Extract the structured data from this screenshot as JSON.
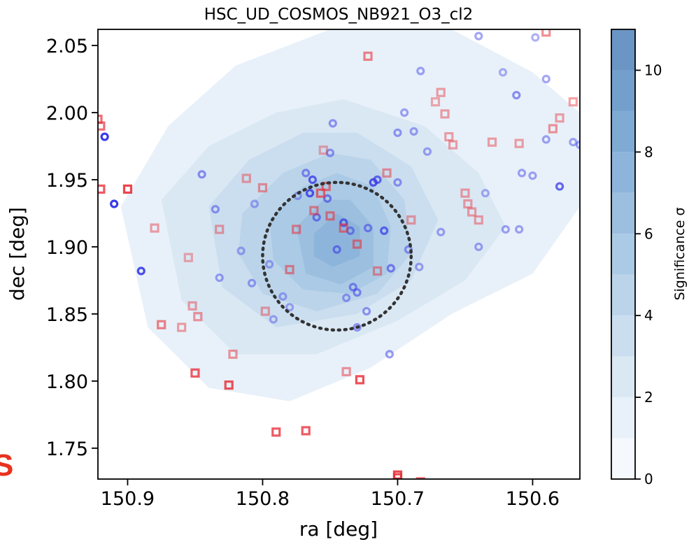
{
  "chart_data": {
    "type": "scatter",
    "title": "HSC_UD_COSMOS_NB921_O3_cl2",
    "xlabel": "ra [deg]",
    "ylabel": "dec [deg]",
    "xlim": [
      150.922,
      150.565
    ],
    "ylim": [
      1.727,
      2.062
    ],
    "x_ticks": [
      150.9,
      150.8,
      150.7,
      150.6
    ],
    "x_tick_labels": [
      "150.9",
      "150.8",
      "150.7",
      "150.6"
    ],
    "y_ticks": [
      1.75,
      1.8,
      1.85,
      1.9,
      1.95,
      2.0,
      2.05
    ],
    "y_tick_labels": [
      "1.75",
      "1.80",
      "1.85",
      "1.90",
      "1.95",
      "2.00",
      "2.05"
    ],
    "grid": false,
    "x_inverted": true,
    "background_contours": {
      "type": "filled-contour",
      "colorbar_label": "Significance σ",
      "colorbar_range": [
        0,
        11
      ],
      "colorbar_ticks": [
        0,
        2,
        4,
        6,
        8,
        10
      ],
      "colorbar_tick_labels": [
        "0",
        "2",
        "4",
        "6",
        "8",
        "10"
      ],
      "level_colors": [
        "#f5f9fd",
        "#e8f1f9",
        "#dae8f4",
        "#cbdeef",
        "#bbd4ea",
        "#abcae5",
        "#9cbfe0",
        "#8db5db",
        "#7faad4",
        "#739fcc",
        "#6a95c4"
      ],
      "regions": [
        {
          "level": 1,
          "points": [
            [
              150.905,
              1.93
            ],
            [
              150.87,
              1.99
            ],
            [
              150.82,
              2.035
            ],
            [
              150.75,
              2.062
            ],
            [
              150.66,
              2.062
            ],
            [
              150.6,
              2.03
            ],
            [
              150.565,
              2.0
            ],
            [
              150.565,
              1.93
            ],
            [
              150.6,
              1.88
            ],
            [
              150.66,
              1.85
            ],
            [
              150.72,
              1.81
            ],
            [
              150.78,
              1.785
            ],
            [
              150.84,
              1.795
            ],
            [
              150.885,
              1.84
            ]
          ]
        },
        {
          "level": 2,
          "points": [
            [
              150.875,
              1.935
            ],
            [
              150.84,
              1.975
            ],
            [
              150.79,
              2.0
            ],
            [
              150.74,
              2.01
            ],
            [
              150.68,
              1.99
            ],
            [
              150.64,
              1.955
            ],
            [
              150.62,
              1.915
            ],
            [
              150.65,
              1.875
            ],
            [
              150.7,
              1.845
            ],
            [
              150.76,
              1.82
            ],
            [
              150.82,
              1.82
            ],
            [
              150.86,
              1.86
            ]
          ]
        },
        {
          "level": 3,
          "points": [
            [
              150.84,
              1.93
            ],
            [
              150.81,
              1.965
            ],
            [
              150.77,
              1.985
            ],
            [
              150.73,
              1.985
            ],
            [
              150.69,
              1.96
            ],
            [
              150.67,
              1.92
            ],
            [
              150.69,
              1.875
            ],
            [
              150.73,
              1.85
            ],
            [
              150.79,
              1.84
            ],
            [
              150.83,
              1.87
            ]
          ]
        },
        {
          "level": 4,
          "points": [
            [
              150.815,
              1.925
            ],
            [
              150.785,
              1.955
            ],
            [
              150.75,
              1.97
            ],
            [
              150.72,
              1.965
            ],
            [
              150.695,
              1.935
            ],
            [
              150.69,
              1.895
            ],
            [
              150.715,
              1.865
            ],
            [
              150.76,
              1.852
            ],
            [
              150.8,
              1.865
            ],
            [
              150.818,
              1.895
            ]
          ]
        },
        {
          "level": 5,
          "points": [
            [
              150.795,
              1.92
            ],
            [
              150.77,
              1.945
            ],
            [
              150.745,
              1.955
            ],
            [
              150.718,
              1.945
            ],
            [
              150.705,
              1.915
            ],
            [
              150.708,
              1.88
            ],
            [
              150.735,
              1.865
            ],
            [
              150.77,
              1.868
            ],
            [
              150.792,
              1.89
            ]
          ]
        },
        {
          "level": 6,
          "points": [
            [
              150.775,
              1.915
            ],
            [
              150.755,
              1.935
            ],
            [
              150.735,
              1.935
            ],
            [
              150.718,
              1.915
            ],
            [
              150.718,
              1.885
            ],
            [
              150.742,
              1.872
            ],
            [
              150.768,
              1.88
            ]
          ]
        },
        {
          "level": 7,
          "points": [
            [
              150.762,
              1.91
            ],
            [
              150.745,
              1.925
            ],
            [
              150.728,
              1.915
            ],
            [
              150.728,
              1.893
            ],
            [
              150.748,
              1.885
            ],
            [
              150.762,
              1.893
            ]
          ]
        }
      ]
    },
    "circle": {
      "center": [
        150.745,
        1.893
      ],
      "radius_ra": 0.055,
      "radius_dec": 0.055,
      "style": "dotted",
      "color": "#333333"
    },
    "series": [
      {
        "marker": "circle",
        "color": "#3a3ae8",
        "points": [
          [
            150.917,
            1.982,
            1.0
          ],
          [
            150.91,
            1.932,
            1.0
          ],
          [
            150.89,
            1.882,
            0.9
          ],
          [
            150.845,
            1.954,
            0.55
          ],
          [
            150.835,
            1.928,
            0.5
          ],
          [
            150.832,
            1.877,
            0.45
          ],
          [
            150.816,
            1.897,
            0.4
          ],
          [
            150.808,
            1.873,
            0.45
          ],
          [
            150.806,
            1.932,
            0.4
          ],
          [
            150.795,
            1.887,
            0.4
          ],
          [
            150.792,
            1.846,
            0.4
          ],
          [
            150.785,
            1.863,
            0.4
          ],
          [
            150.78,
            1.855,
            0.4
          ],
          [
            150.774,
            1.938,
            0.4
          ],
          [
            150.768,
            1.955,
            0.55
          ],
          [
            150.765,
            1.94,
            0.85
          ],
          [
            150.763,
            1.95,
            0.8
          ],
          [
            150.76,
            1.922,
            0.6
          ],
          [
            150.752,
            1.936,
            0.6
          ],
          [
            150.75,
            1.97,
            0.5
          ],
          [
            150.748,
            1.992,
            0.5
          ],
          [
            150.745,
            1.898,
            0.6
          ],
          [
            150.74,
            1.918,
            0.75
          ],
          [
            150.738,
            1.862,
            0.45
          ],
          [
            150.735,
            1.912,
            0.55
          ],
          [
            150.733,
            1.87,
            0.55
          ],
          [
            150.73,
            1.866,
            0.55
          ],
          [
            150.73,
            1.84,
            0.5
          ],
          [
            150.723,
            1.852,
            0.5
          ],
          [
            150.722,
            1.914,
            0.55
          ],
          [
            150.718,
            1.948,
            0.85
          ],
          [
            150.715,
            1.95,
            0.75
          ],
          [
            150.71,
            1.912,
            0.75
          ],
          [
            150.705,
            1.884,
            0.6
          ],
          [
            150.706,
            1.82,
            0.5
          ],
          [
            150.7,
            1.948,
            0.5
          ],
          [
            150.7,
            1.985,
            0.5
          ],
          [
            150.695,
            2.0,
            0.45
          ],
          [
            150.692,
            1.898,
            0.5
          ],
          [
            150.688,
            1.986,
            0.45
          ],
          [
            150.684,
            1.885,
            0.45
          ],
          [
            150.683,
            2.031,
            0.45
          ],
          [
            150.678,
            1.971,
            0.45
          ],
          [
            150.668,
            1.911,
            0.45
          ],
          [
            150.64,
            1.9,
            0.45
          ],
          [
            150.64,
            2.057,
            0.45
          ],
          [
            150.635,
            1.94,
            0.4
          ],
          [
            150.622,
            2.03,
            0.4
          ],
          [
            150.62,
            1.913,
            0.45
          ],
          [
            150.612,
            2.013,
            0.55
          ],
          [
            150.61,
            1.913,
            0.45
          ],
          [
            150.608,
            1.955,
            0.45
          ],
          [
            150.6,
            1.953,
            0.45
          ],
          [
            150.598,
            2.056,
            0.4
          ],
          [
            150.59,
            2.025,
            0.45
          ],
          [
            150.58,
            1.945,
            0.5
          ],
          [
            150.58,
            1.945,
            0.5
          ],
          [
            150.59,
            1.98,
            0.45
          ],
          [
            150.57,
            1.978,
            0.45
          ],
          [
            150.565,
            1.976,
            0.45
          ],
          [
            150.56,
            1.985,
            0.5
          ]
        ]
      },
      {
        "marker": "square",
        "color": "#e8323c",
        "points": [
          [
            150.922,
            1.995,
            0.7
          ],
          [
            150.92,
            1.99,
            0.7
          ],
          [
            150.92,
            1.943,
            0.8
          ],
          [
            150.9,
            1.943,
            0.9
          ],
          [
            150.88,
            1.914,
            0.45
          ],
          [
            150.875,
            1.842,
            0.6
          ],
          [
            150.86,
            1.84,
            0.45
          ],
          [
            150.855,
            1.892,
            0.4
          ],
          [
            150.852,
            1.856,
            0.45
          ],
          [
            150.85,
            1.806,
            0.8
          ],
          [
            150.848,
            1.848,
            0.5
          ],
          [
            150.832,
            1.913,
            0.45
          ],
          [
            150.825,
            1.797,
            0.85
          ],
          [
            150.822,
            1.82,
            0.5
          ],
          [
            150.812,
            1.951,
            0.45
          ],
          [
            150.8,
            1.944,
            0.5
          ],
          [
            150.798,
            1.852,
            0.45
          ],
          [
            150.79,
            1.762,
            0.8
          ],
          [
            150.78,
            1.883,
            0.55
          ],
          [
            150.775,
            1.913,
            0.55
          ],
          [
            150.768,
            1.763,
            0.8
          ],
          [
            150.762,
            1.927,
            0.55
          ],
          [
            150.757,
            1.94,
            0.7
          ],
          [
            150.755,
            1.972,
            0.4
          ],
          [
            150.753,
            1.945,
            0.65
          ],
          [
            150.75,
            1.923,
            0.6
          ],
          [
            150.74,
            1.914,
            0.6
          ],
          [
            150.738,
            1.807,
            0.5
          ],
          [
            150.73,
            1.902,
            0.6
          ],
          [
            150.728,
            1.801,
            0.85
          ],
          [
            150.722,
            2.042,
            0.6
          ],
          [
            150.715,
            1.882,
            0.5
          ],
          [
            150.708,
            1.955,
            0.5
          ],
          [
            150.7,
            1.73,
            0.9
          ],
          [
            150.7,
            1.728,
            0.9
          ],
          [
            150.69,
            1.92,
            0.45
          ],
          [
            150.683,
            1.725,
            0.7
          ],
          [
            150.672,
            2.008,
            0.4
          ],
          [
            150.668,
            2.015,
            0.45
          ],
          [
            150.665,
            1.999,
            0.45
          ],
          [
            150.662,
            1.982,
            0.45
          ],
          [
            150.659,
            1.976,
            0.45
          ],
          [
            150.65,
            1.94,
            0.45
          ],
          [
            150.648,
            1.932,
            0.45
          ],
          [
            150.645,
            1.926,
            0.45
          ],
          [
            150.64,
            1.92,
            0.45
          ],
          [
            150.63,
            1.978,
            0.45
          ],
          [
            150.61,
            1.977,
            0.45
          ],
          [
            150.59,
            2.06,
            0.55
          ],
          [
            150.58,
            1.996,
            0.45
          ],
          [
            150.57,
            2.008,
            0.45
          ],
          [
            150.585,
            1.988,
            0.5
          ]
        ]
      }
    ]
  },
  "corner_mark": "S"
}
